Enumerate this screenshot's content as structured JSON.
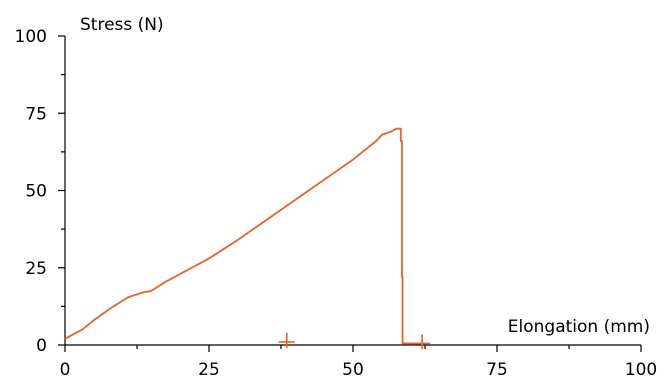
{
  "chart_data": {
    "type": "line",
    "title": "",
    "xlabel": "Elongation (mm)",
    "ylabel": "Stress (N)",
    "xlim": [
      0,
      100
    ],
    "ylim": [
      0,
      100
    ],
    "x_ticks": [
      "0",
      "25",
      "50",
      "75",
      "100"
    ],
    "y_ticks": [
      "0",
      "25",
      "50",
      "75",
      "100"
    ],
    "grid": false,
    "colors": {
      "series": "#e8622a",
      "axis": "#000000"
    },
    "series": [
      {
        "x": [
          0,
          1,
          3,
          5,
          8,
          11,
          13.5,
          15,
          17.5,
          19,
          22,
          25,
          30,
          35,
          40,
          45,
          50,
          54,
          55,
          56.5,
          57.5,
          58.3,
          58.3,
          58.5,
          58.5,
          58.6,
          58.6,
          62
        ],
        "values": [
          2,
          3,
          5,
          8,
          12,
          15.5,
          17,
          17.5,
          20.5,
          22,
          25,
          28,
          34,
          40.5,
          47,
          53.5,
          60,
          66,
          68,
          69,
          70,
          70,
          66,
          66,
          22,
          22,
          0.5,
          0.5
        ]
      }
    ],
    "markers": [
      {
        "x": 38.5,
        "y": 1
      },
      {
        "x": 62,
        "y": 0.5
      }
    ]
  }
}
